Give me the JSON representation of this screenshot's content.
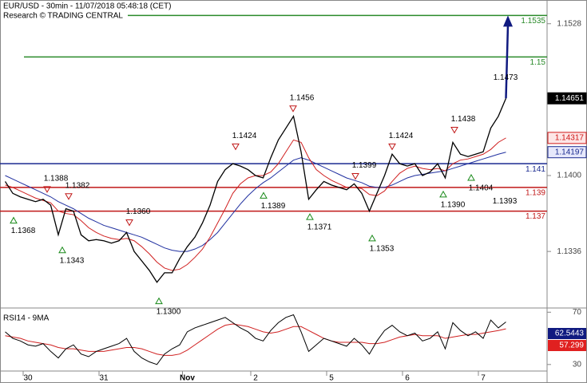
{
  "chart_data": {
    "type": "line",
    "title": "EUR/USD - 30min - 11/07/2018 05:48:18 (CET)",
    "subtitle": "Research © TRADING CENTRAL",
    "categories": [
      null,
      null,
      null,
      "30",
      null,
      null,
      null,
      null,
      null,
      null,
      null,
      null,
      null,
      "31",
      null,
      null,
      null,
      null,
      null,
      null,
      null,
      null,
      null,
      null,
      "Nov",
      null,
      null,
      null,
      null,
      null,
      null,
      null,
      null,
      "2",
      null,
      null,
      null,
      null,
      null,
      null,
      null,
      null,
      null,
      "5",
      null,
      null,
      null,
      null,
      null,
      null,
      null,
      null,
      null,
      "6",
      null,
      null,
      null,
      null,
      null,
      null,
      null,
      null,
      null,
      "7",
      null,
      null,
      null
    ],
    "series": [
      {
        "color": "#000000",
        "values": [
          1.1395,
          1.1385,
          1.1382,
          1.138,
          1.1378,
          1.138,
          1.1375,
          1.135,
          1.1372,
          1.137,
          1.135,
          1.1345,
          1.1346,
          1.1345,
          1.1343,
          1.1345,
          1.1352,
          1.1336,
          1.1328,
          1.132,
          1.131,
          1.1318,
          1.1318,
          1.133,
          1.134,
          1.1348,
          1.136,
          1.1375,
          1.1395,
          1.1405,
          1.141,
          1.1408,
          1.1405,
          1.14,
          1.1398,
          1.1415,
          1.143,
          1.144,
          1.145,
          1.142,
          1.138,
          1.1388,
          1.1395,
          1.1392,
          1.139,
          1.1388,
          1.1393,
          1.1385,
          1.137,
          1.1385,
          1.14,
          1.1418,
          1.141,
          1.1408,
          1.141,
          1.14,
          1.1403,
          1.141,
          1.1398,
          1.1428,
          1.1418,
          1.1416,
          1.1418,
          1.142,
          1.144,
          1.145,
          1.14651
        ]
      },
      {
        "color": "#d02020",
        "values": [
          1.1392,
          1.139,
          1.1387,
          1.1384,
          1.1381,
          1.1379,
          1.1377,
          1.137,
          1.1368,
          1.1367,
          1.1362,
          1.1356,
          1.1352,
          1.1349,
          1.1347,
          1.1346,
          1.1347,
          1.1345,
          1.134,
          1.1334,
          1.1327,
          1.1322,
          1.132,
          1.1321,
          1.1325,
          1.1331,
          1.1338,
          1.1348,
          1.136,
          1.1372,
          1.1385,
          1.1393,
          1.1398,
          1.14,
          1.14,
          1.1403,
          1.141,
          1.142,
          1.143,
          1.1428,
          1.1415,
          1.1405,
          1.14,
          1.1396,
          1.1393,
          1.139,
          1.139,
          1.1389,
          1.1384,
          1.1383,
          1.1387,
          1.1395,
          1.1402,
          1.1406,
          1.1408,
          1.1406,
          1.1405,
          1.1406,
          1.1404,
          1.141,
          1.1413,
          1.1414,
          1.1416,
          1.1418,
          1.1422,
          1.1428,
          1.14317
        ]
      },
      {
        "color": "#2030a0",
        "values": [
          1.14,
          1.1397,
          1.1394,
          1.1391,
          1.1388,
          1.1385,
          1.1382,
          1.1378,
          1.1375,
          1.1372,
          1.1368,
          1.1364,
          1.1361,
          1.1358,
          1.1356,
          1.1354,
          1.1352,
          1.135,
          1.1348,
          1.1345,
          1.1342,
          1.1339,
          1.1337,
          1.1336,
          1.1336,
          1.1338,
          1.1341,
          1.1346,
          1.1352,
          1.136,
          1.1368,
          1.1376,
          1.1383,
          1.1389,
          1.1394,
          1.1398,
          1.1403,
          1.1408,
          1.1413,
          1.1415,
          1.1413,
          1.141,
          1.1407,
          1.1404,
          1.1401,
          1.1398,
          1.1396,
          1.1394,
          1.1391,
          1.139,
          1.139,
          1.1392,
          1.1395,
          1.1398,
          1.14,
          1.1401,
          1.1402,
          1.1403,
          1.1404,
          1.1406,
          1.1408,
          1.141,
          1.1412,
          1.1414,
          1.1416,
          1.1418,
          1.14197
        ]
      }
    ],
    "ylim": [
      1.1289,
      1.1548
    ],
    "yticks": [
      1.1528,
      {
        "value": 1.14,
        "label": "1.1400"
      },
      1.1336
    ],
    "levels": [
      {
        "value": 1.1535,
        "color": "#2a8a2a"
      },
      {
        "value": 1.15,
        "color": "#2a8a2a"
      },
      {
        "value": 1.141,
        "color": "#1a2a90"
      },
      {
        "value": 1.139,
        "color": "#c01818"
      },
      {
        "value": 1.137,
        "color": "#c01818"
      }
    ],
    "swing_highs": [
      1.1388,
      1.1382,
      {
        "value": 1.136,
        "label": "1.1360"
      },
      1.1424,
      1.1456,
      1.1399,
      1.1424,
      1.1438,
      1.1473
    ],
    "swing_lows": [
      1.1368,
      1.1343,
      {
        "value": 1.13,
        "label": "1.1300"
      },
      1.1389,
      1.1371,
      1.1353,
      {
        "value": 1.139,
        "label": "1.1390"
      },
      1.1404,
      1.1393
    ],
    "rsi": {
      "title": "RSI14 - 9MA",
      "ylim": [
        25,
        72
      ],
      "yticks": [
        70,
        30
      ],
      "series": [
        {
          "color": "#000000",
          "values": [
            55,
            50,
            48,
            45,
            44,
            46,
            40,
            35,
            42,
            45,
            38,
            36,
            40,
            42,
            44,
            46,
            50,
            40,
            35,
            32,
            30,
            38,
            42,
            45,
            55,
            58,
            60,
            62,
            64,
            66,
            62,
            58,
            55,
            50,
            48,
            56,
            62,
            66,
            68,
            55,
            40,
            45,
            50,
            48,
            46,
            44,
            50,
            45,
            38,
            48,
            56,
            60,
            55,
            52,
            54,
            48,
            50,
            55,
            42,
            62,
            56,
            52,
            55,
            50,
            64,
            58,
            62.5443
          ]
        },
        {
          "color": "#d02020",
          "values": [
            52,
            51,
            50,
            48,
            47,
            46,
            45,
            43,
            42,
            42,
            41,
            40,
            40,
            40,
            41,
            42,
            43,
            43,
            42,
            40,
            38,
            37,
            37,
            38,
            41,
            45,
            49,
            53,
            57,
            60,
            61,
            60,
            59,
            57,
            55,
            54,
            55,
            57,
            59,
            59,
            56,
            53,
            50,
            48,
            47,
            47,
            47,
            47,
            46,
            46,
            47,
            49,
            51,
            52,
            53,
            52,
            52,
            52,
            50,
            51,
            52,
            53,
            53,
            54,
            55,
            56,
            57.299
          ]
        }
      ]
    }
  }
}
